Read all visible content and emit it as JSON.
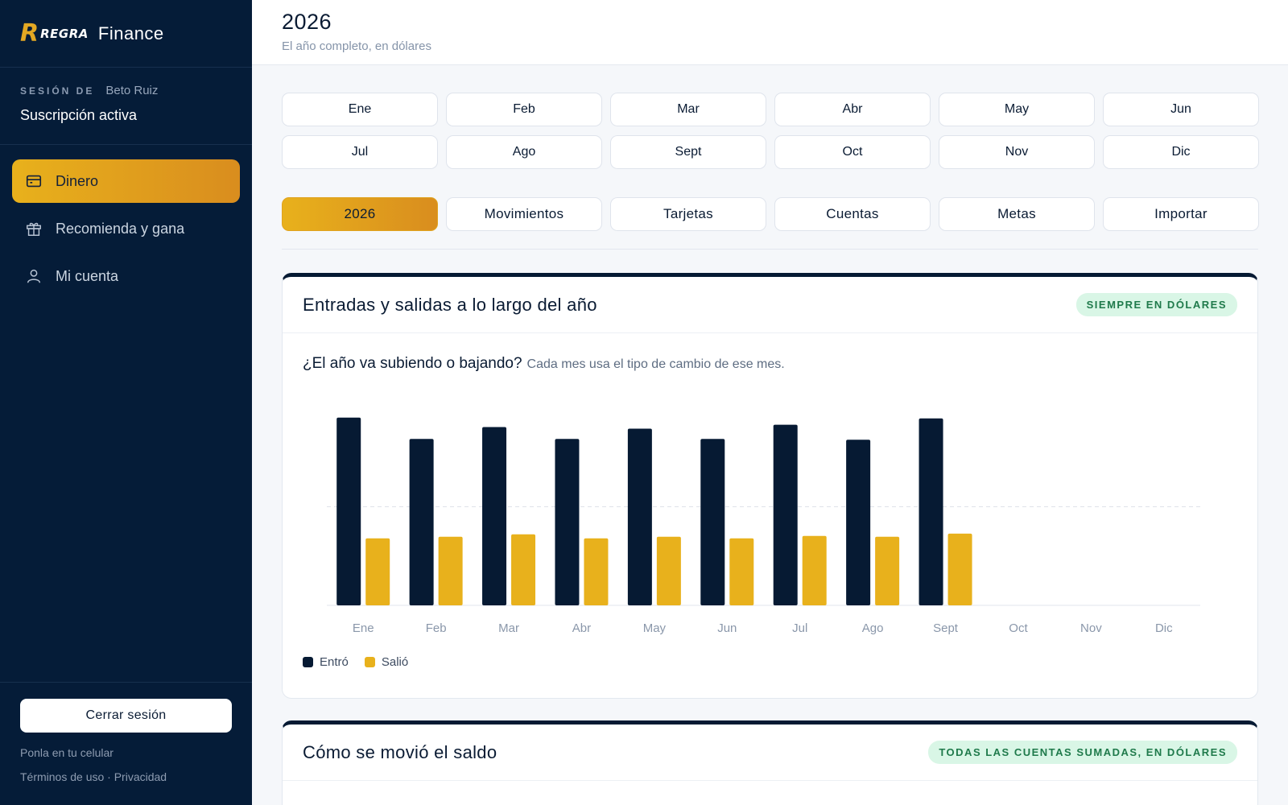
{
  "brand": {
    "mark": "R",
    "word": "REGRA",
    "name": "Finance"
  },
  "session": {
    "label": "SESIÓN DE",
    "user": "Beto Ruiz",
    "status": "Suscripción activa"
  },
  "nav": [
    {
      "label": "Dinero",
      "icon": "wallet-icon",
      "active": true
    },
    {
      "label": "Recomienda y gana",
      "icon": "gift-icon",
      "active": false
    },
    {
      "label": "Mi cuenta",
      "icon": "user-icon",
      "active": false
    }
  ],
  "sidebar_footer": {
    "logout": "Cerrar sesión",
    "mobile": "Ponla en tu celular",
    "links": "Términos de uso · Privacidad"
  },
  "header": {
    "title": "2026",
    "subtitle": "El año completo, en dólares"
  },
  "months": [
    "Ene",
    "Feb",
    "Mar",
    "Abr",
    "May",
    "Jun",
    "Jul",
    "Ago",
    "Sept",
    "Oct",
    "Nov",
    "Dic"
  ],
  "tabs": [
    {
      "label": "2026",
      "active": true
    },
    {
      "label": "Movimientos",
      "active": false
    },
    {
      "label": "Tarjetas",
      "active": false
    },
    {
      "label": "Cuentas",
      "active": false
    },
    {
      "label": "Metas",
      "active": false
    },
    {
      "label": "Importar",
      "active": false
    }
  ],
  "card1": {
    "title": "Entradas y salidas a lo largo del año",
    "badge": "SIEMPRE EN DÓLARES",
    "question": "¿El año va subiendo o bajando?",
    "note": "Cada mes usa el tipo de cambio de ese mes."
  },
  "card2": {
    "title": "Cómo se movió el saldo",
    "badge": "TODAS LAS CUENTAS SUMADAS, EN DÓLARES"
  },
  "colors": {
    "navy": "#061a33",
    "gold": "#e8b11c",
    "badge_bg": "#d9f6e6",
    "badge_text": "#1f7a4b"
  },
  "chart_data": {
    "type": "bar",
    "categories": [
      "Ene",
      "Feb",
      "Mar",
      "Abr",
      "May",
      "Jun",
      "Jul",
      "Ago",
      "Sept",
      "Oct",
      "Nov",
      "Dic"
    ],
    "series": [
      {
        "name": "Entró",
        "color": "#061a33",
        "values": [
          238,
          211,
          226,
          211,
          224,
          211,
          229,
          210,
          237,
          null,
          null,
          null
        ]
      },
      {
        "name": "Salió",
        "color": "#e8b11c",
        "values": [
          85,
          87,
          90,
          85,
          87,
          85,
          88,
          87,
          91,
          null,
          null,
          null
        ]
      }
    ],
    "ylim": [
      0,
      250
    ],
    "grid": "dashed midline",
    "legend": "bottom-left"
  }
}
